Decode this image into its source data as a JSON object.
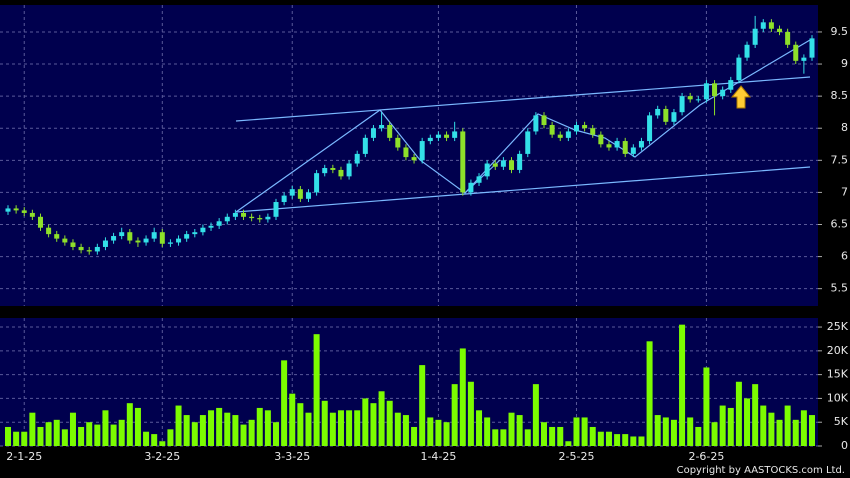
{
  "chart_data": [
    {
      "type": "candlestick",
      "open": [
        6.7,
        6.75,
        6.72,
        6.68,
        6.62,
        6.45,
        6.35,
        6.28,
        6.22,
        6.15,
        6.1,
        6.08,
        6.15,
        6.25,
        6.32,
        6.38,
        6.25,
        6.22,
        6.28,
        6.38,
        6.2,
        6.22,
        6.28,
        6.35,
        6.38,
        6.45,
        6.48,
        6.55,
        6.62,
        6.68,
        6.62,
        6.6,
        6.58,
        6.62,
        6.85,
        6.95,
        7.05,
        6.9,
        7.0,
        7.3,
        7.38,
        7.35,
        7.25,
        7.45,
        7.6,
        7.85,
        8.0,
        8.05,
        7.85,
        7.7,
        7.55,
        7.5,
        7.8,
        7.85,
        7.9,
        7.85,
        7.95,
        7.0,
        7.15,
        7.25,
        7.45,
        7.4,
        7.5,
        7.35,
        7.6,
        7.95,
        8.2,
        8.05,
        7.9,
        7.85,
        7.95,
        8.05,
        8.0,
        7.9,
        7.75,
        7.7,
        7.8,
        7.6,
        7.7,
        7.8,
        8.2,
        8.3,
        8.1,
        8.25,
        8.5,
        8.45,
        8.45,
        8.7,
        8.5,
        8.6,
        8.75,
        9.1,
        9.3,
        9.55,
        9.65,
        9.55,
        9.5,
        9.3,
        9.05,
        9.1
      ],
      "high": [
        6.8,
        6.8,
        6.77,
        6.73,
        6.67,
        6.5,
        6.4,
        6.33,
        6.27,
        6.2,
        6.15,
        6.2,
        6.3,
        6.37,
        6.45,
        6.43,
        6.3,
        6.33,
        6.45,
        6.43,
        6.27,
        6.33,
        6.4,
        6.43,
        6.5,
        6.53,
        6.6,
        6.67,
        6.73,
        6.73,
        6.67,
        6.65,
        6.67,
        6.9,
        7.0,
        7.1,
        7.1,
        7.05,
        7.35,
        7.43,
        7.43,
        7.4,
        7.5,
        7.65,
        7.9,
        8.05,
        8.25,
        8.1,
        7.9,
        7.75,
        7.6,
        7.85,
        7.9,
        7.95,
        7.95,
        8.1,
        8.0,
        7.2,
        7.3,
        7.5,
        7.5,
        7.55,
        7.55,
        7.65,
        8.0,
        8.25,
        8.25,
        8.1,
        7.95,
        8.0,
        8.1,
        8.1,
        8.05,
        7.95,
        7.8,
        7.85,
        7.85,
        7.75,
        7.85,
        8.25,
        8.35,
        8.35,
        8.3,
        8.55,
        8.55,
        8.5,
        8.75,
        8.75,
        8.65,
        8.8,
        9.15,
        9.35,
        9.75,
        9.7,
        9.7,
        9.6,
        9.55,
        9.35,
        9.15,
        9.45
      ],
      "low": [
        6.65,
        6.67,
        6.63,
        6.57,
        6.4,
        6.3,
        6.23,
        6.17,
        6.1,
        6.05,
        6.03,
        6.03,
        6.1,
        6.2,
        6.27,
        6.2,
        6.15,
        6.17,
        6.23,
        6.15,
        6.15,
        6.17,
        6.23,
        6.3,
        6.33,
        6.4,
        6.43,
        6.5,
        6.57,
        6.57,
        6.55,
        6.53,
        6.53,
        6.57,
        6.8,
        6.9,
        6.85,
        6.85,
        6.95,
        7.25,
        7.3,
        7.2,
        7.2,
        7.4,
        7.55,
        7.8,
        7.95,
        7.8,
        7.65,
        7.5,
        7.45,
        7.45,
        7.75,
        7.8,
        7.8,
        7.8,
        6.95,
        6.95,
        7.1,
        7.2,
        7.35,
        7.35,
        7.3,
        7.3,
        7.55,
        7.9,
        8.0,
        7.85,
        7.8,
        7.8,
        7.9,
        7.95,
        7.85,
        7.7,
        7.65,
        7.65,
        7.55,
        7.55,
        7.65,
        7.75,
        8.15,
        8.05,
        8.05,
        8.2,
        8.4,
        8.4,
        8.4,
        8.2,
        8.45,
        8.55,
        8.7,
        9.05,
        9.25,
        9.5,
        9.5,
        9.45,
        9.25,
        9.0,
        8.85,
        9.05
      ],
      "close": [
        6.75,
        6.72,
        6.68,
        6.62,
        6.45,
        6.35,
        6.28,
        6.22,
        6.15,
        6.1,
        6.08,
        6.15,
        6.25,
        6.32,
        6.38,
        6.25,
        6.22,
        6.28,
        6.38,
        6.2,
        6.22,
        6.28,
        6.35,
        6.38,
        6.45,
        6.48,
        6.55,
        6.62,
        6.68,
        6.62,
        6.6,
        6.58,
        6.62,
        6.85,
        6.95,
        7.05,
        6.9,
        7.0,
        7.3,
        7.38,
        7.35,
        7.25,
        7.45,
        7.6,
        7.85,
        8.0,
        8.05,
        7.85,
        7.7,
        7.55,
        7.5,
        7.8,
        7.85,
        7.9,
        7.85,
        7.95,
        7.0,
        7.15,
        7.25,
        7.45,
        7.4,
        7.5,
        7.35,
        7.6,
        7.95,
        8.2,
        8.05,
        7.9,
        7.85,
        7.95,
        8.05,
        8.0,
        7.9,
        7.75,
        7.7,
        7.8,
        7.6,
        7.7,
        7.8,
        8.2,
        8.3,
        8.1,
        8.25,
        8.5,
        8.45,
        8.45,
        8.7,
        8.5,
        8.6,
        8.75,
        9.1,
        9.3,
        9.55,
        9.65,
        9.55,
        9.5,
        9.3,
        9.05,
        9.1,
        9.4
      ],
      "up_color": "#33e0e8",
      "down_color": "#8ee02a",
      "ylim": [
        5.23,
        9.92
      ],
      "yticks": [
        5.5,
        6,
        6.5,
        7,
        7.5,
        8,
        8.5,
        9,
        9.5
      ],
      "grid": true
    },
    {
      "type": "bar",
      "categories": [
        null,
        null,
        "2-1-25",
        null,
        null,
        null,
        null,
        null,
        null,
        null,
        null,
        null,
        null,
        null,
        null,
        null,
        null,
        null,
        null,
        "3-2-25",
        null,
        null,
        null,
        null,
        null,
        null,
        null,
        null,
        null,
        null,
        null,
        null,
        null,
        null,
        null,
        "3-3-25",
        null,
        null,
        null,
        null,
        null,
        null,
        null,
        null,
        null,
        null,
        null,
        null,
        null,
        null,
        null,
        null,
        null,
        "1-4-25",
        null,
        null,
        null,
        null,
        null,
        null,
        null,
        null,
        null,
        null,
        null,
        null,
        null,
        null,
        null,
        null,
        "2-5-25",
        null,
        null,
        null,
        null,
        null,
        null,
        null,
        null,
        null,
        null,
        null,
        null,
        null,
        null,
        null,
        "2-6-25",
        null,
        null,
        null,
        null,
        null,
        null,
        null,
        null,
        null,
        null,
        null,
        null,
        null
      ],
      "values": [
        4000,
        3000,
        3000,
        7000,
        4000,
        5000,
        5500,
        3500,
        7000,
        4000,
        5000,
        4500,
        7500,
        4500,
        5500,
        9000,
        8000,
        3000,
        2500,
        1000,
        3500,
        8500,
        6500,
        5000,
        6500,
        7500,
        8000,
        7000,
        6500,
        4500,
        5500,
        8000,
        7500,
        5000,
        18000,
        11000,
        9000,
        7000,
        23500,
        9500,
        7000,
        7500,
        7500,
        7500,
        10000,
        9000,
        11500,
        9500,
        7000,
        6500,
        4000,
        17000,
        6000,
        5500,
        5000,
        13000,
        20500,
        13500,
        7500,
        6000,
        3500,
        3500,
        7000,
        6500,
        3500,
        13000,
        5000,
        4000,
        4000,
        1000,
        6000,
        6000,
        4000,
        3000,
        3000,
        2500,
        2500,
        2000,
        2000,
        22000,
        6500,
        6000,
        5500,
        25500,
        6000,
        4000,
        16500,
        5000,
        8500,
        8000,
        13500,
        10000,
        13000,
        8500,
        7000,
        5500,
        8500,
        5500,
        7500,
        6500
      ],
      "color": "#7cfc00",
      "ylim": [
        0,
        26900
      ],
      "yticks": [
        0,
        {
          "value": 5000,
          "label": "5K"
        },
        {
          "value": 10000,
          "label": "10K"
        },
        {
          "value": 15000,
          "label": "15K"
        },
        {
          "value": 20000,
          "label": "20K"
        },
        {
          "value": 25000,
          "label": "25K"
        }
      ],
      "grid": true
    }
  ],
  "copyright": "Copyright by AASTOCKS.com Ltd."
}
